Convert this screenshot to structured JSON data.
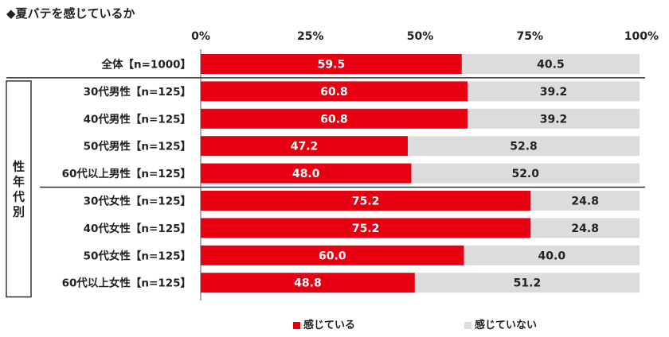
{
  "title": "◆夏バテを感じているか",
  "colors": {
    "s1": "#e60012",
    "s2": "#dcdcdc",
    "s1_text": "#ffffff",
    "s2_text": "#222222"
  },
  "chart_data": {
    "type": "bar",
    "orientation": "horizontal-stacked-100",
    "x_ticks": [
      "0%",
      "25%",
      "50%",
      "75%",
      "100%"
    ],
    "xlim": [
      0,
      100
    ],
    "group_label": "性年代別",
    "categories": [
      "全体【n=1000】",
      "30代男性【n=125】",
      "40代男性【n=125】",
      "50代男性【n=125】",
      "60代以上男性【n=125】",
      "30代女性【n=125】",
      "40代女性【n=125】",
      "50代女性【n=125】",
      "60代以上女性【n=125】"
    ],
    "series": [
      {
        "name": "感じている",
        "values": [
          59.5,
          60.8,
          60.8,
          47.2,
          48.0,
          75.2,
          75.2,
          60.0,
          48.8
        ],
        "labels": [
          "59.5",
          "60.8",
          "60.8",
          "47.2",
          "48.0",
          "75.2",
          "75.2",
          "60.0",
          "48.8"
        ]
      },
      {
        "name": "感じていない",
        "values": [
          40.5,
          39.2,
          39.2,
          52.8,
          52.0,
          24.8,
          24.8,
          40.0,
          51.2
        ],
        "labels": [
          "40.5",
          "39.2",
          "39.2",
          "52.8",
          "52.0",
          "24.8",
          "24.8",
          "40.0",
          "51.2"
        ]
      }
    ],
    "legend_position": "bottom"
  }
}
